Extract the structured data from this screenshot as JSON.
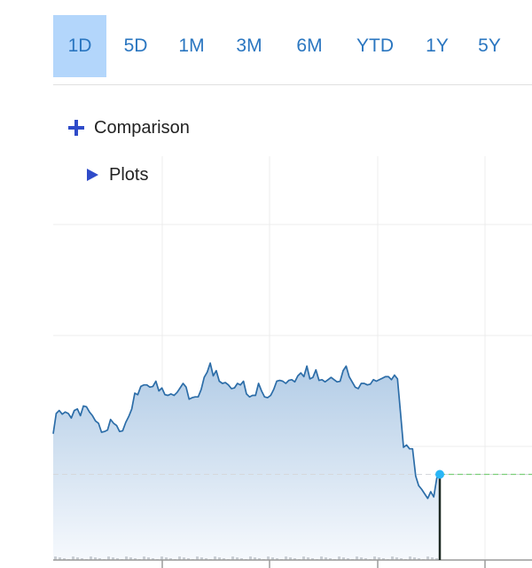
{
  "range_tabs": [
    {
      "label": "1D",
      "active": true
    },
    {
      "label": "5D",
      "active": false
    },
    {
      "label": "1M",
      "active": false
    },
    {
      "label": "3M",
      "active": false
    },
    {
      "label": "6M",
      "active": false
    },
    {
      "label": "YTD",
      "active": false
    },
    {
      "label": "1Y",
      "active": false
    },
    {
      "label": "5Y",
      "active": false
    }
  ],
  "controls": {
    "comparison_label": "Comparison",
    "plots_label": "Plots",
    "comparison_icon": "plus-icon",
    "plots_icon": "triangle-right-icon"
  },
  "colors": {
    "accent": "#2a76c0",
    "active_tab_bg": "#b3d6fb",
    "line": "#2c6da8",
    "area_top": "#b2cce6",
    "area_bottom": "#f6f9fd",
    "marker": "#29b6f6",
    "reference_line": "#7ccf7a",
    "icon": "#2f4bc9"
  },
  "chart_data": {
    "type": "area",
    "title": "",
    "xlabel": "",
    "ylabel": "",
    "grid": true,
    "legend": "none",
    "series": [
      {
        "values": [
          31,
          58,
          62,
          57,
          60,
          58,
          52,
          62,
          64,
          55,
          68,
          67,
          60,
          55,
          48,
          45,
          33,
          34,
          36,
          50,
          45,
          42,
          34,
          35,
          46,
          54,
          64,
          85,
          83,
          94,
          96,
          96,
          93,
          94,
          101,
          88,
          92,
          83,
          82,
          84,
          82,
          86,
          92,
          98,
          93,
          77,
          79,
          80,
          80,
          90,
          106,
          113,
          125,
          108,
          115,
          101,
          98,
          99,
          96,
          91,
          92,
          98,
          96,
          101,
          84,
          80,
          82,
          82,
          98,
          88,
          80,
          79,
          82,
          90,
          101,
          102,
          101,
          98,
          102,
          103,
          100,
          108,
          112,
          107,
          121,
          104,
          106,
          116,
          102,
          103,
          100,
          103,
          106,
          103,
          100,
          101,
          115,
          121,
          107,
          100,
          93,
          91,
          98,
          98,
          96,
          97,
          103,
          101,
          103,
          105,
          107,
          107,
          103,
          109,
          104,
          59,
          13,
          16,
          11,
          11,
          -25,
          -38,
          -43,
          -49,
          -55,
          -46,
          -53,
          -28,
          -23
        ]
      }
    ]
  }
}
